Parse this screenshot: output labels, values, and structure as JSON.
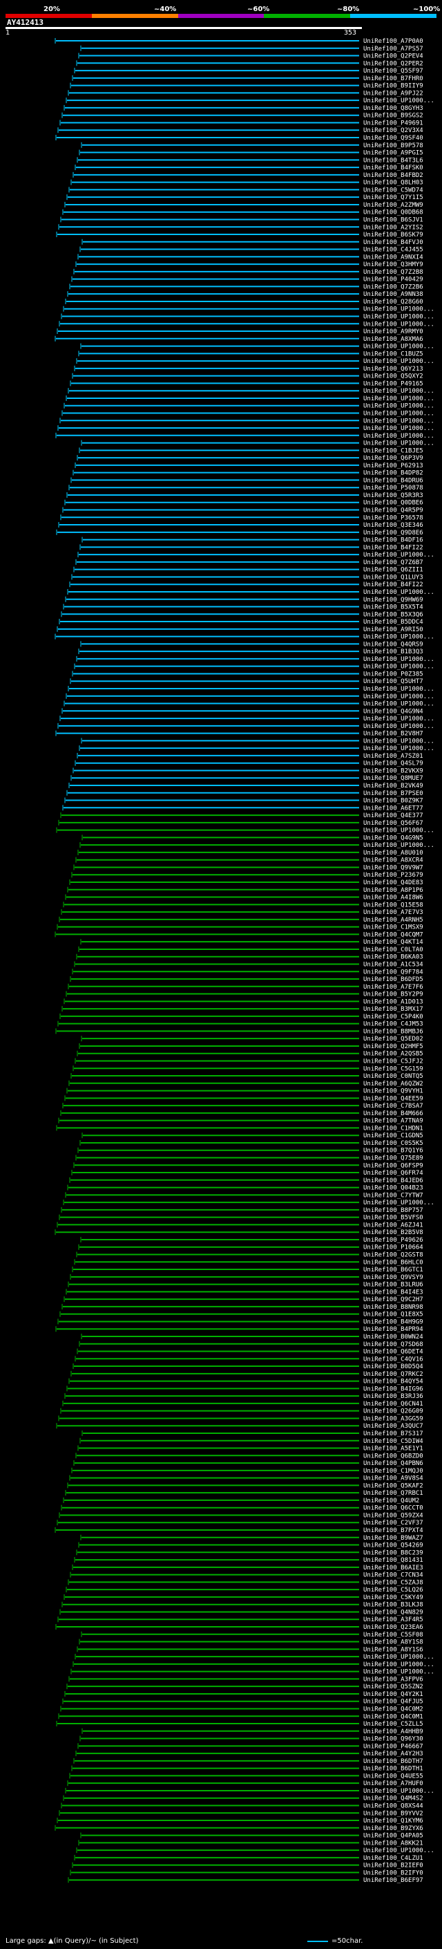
{
  "scale": {
    "labels": [
      "20%",
      "~40%",
      "~60%",
      "~80%",
      "~100%"
    ],
    "colors": [
      "#e00000",
      "#ff8000",
      "#a000c0",
      "#00b000",
      "#00bfff"
    ]
  },
  "query": {
    "id": "AY412413",
    "start": "1",
    "end": "353"
  },
  "legend": {
    "text": "Large gaps: ▲(in Query)/~ (in Subject)",
    "scale_text": "=50char."
  },
  "hits": [
    "UniRef100_A7P0A0",
    "UniRef100_A7PS57",
    "UniRef100_Q2PEV4",
    "UniRef100_Q2PER2",
    "UniRef100_Q5SF97",
    "UniRef100_B7FHR0",
    "UniRef100_B9IIY9",
    "UniRef100_A9PJ22",
    "UniRef100_UP1000...",
    "UniRef100_Q8GYH3",
    "UniRef100_B9SGS2",
    "UniRef100_P49691",
    "UniRef100_Q2V3X4",
    "UniRef100_Q9SF40",
    "UniRef100_B9P578",
    "UniRef100_A9PGI5",
    "UniRef100_B4T3L6",
    "UniRef100_B4FSK0",
    "UniRef100_B4FBD2",
    "UniRef100_Q8LH03",
    "UniRef100_C5WD74",
    "UniRef100_Q7Y1I5",
    "UniRef100_A2ZMW9",
    "UniRef100_Q0DB68",
    "UniRef100_B6SJV1",
    "UniRef100_A2YIS2",
    "UniRef100_B6SK79",
    "UniRef100_B4FVJ0",
    "UniRef100_C4J455",
    "UniRef100_A9NXI4",
    "UniRef100_Q3HMY9",
    "UniRef100_Q7Z2B8",
    "UniRef100_P40429",
    "UniRef100_Q7Z2B6",
    "UniRef100_A9NN38",
    "UniRef100_Q28G60",
    "UniRef100_UP1000...",
    "UniRef100_UP1000...",
    "UniRef100_UP1000...",
    "UniRef100_A9RMY0",
    "UniRef100_A8XMA6",
    "UniRef100_UP1000...",
    "UniRef100_C1BUZ5",
    "UniRef100_UP1000...",
    "UniRef100_Q6Y213",
    "UniRef100_Q5QXY2",
    "UniRef100_P49165",
    "UniRef100_UP1000...",
    "UniRef100_UP1000...",
    "UniRef100_UP1000...",
    "UniRef100_UP1000...",
    "UniRef100_UP1000...",
    "UniRef100_UP1000...",
    "UniRef100_UP1000...",
    "UniRef100_UP1000...",
    "UniRef100_C1BJE5",
    "UniRef100_Q6P3V9",
    "UniRef100_P62913",
    "UniRef100_B4DP82",
    "UniRef100_B4DRU6",
    "UniRef100_P50878",
    "UniRef100_Q5R3R3",
    "UniRef100_Q0DBE6",
    "UniRef100_Q4R5P9",
    "UniRef100_P36578",
    "UniRef100_Q3E346",
    "UniRef100_Q9D8E6",
    "UniRef100_B4DF16",
    "UniRef100_B4FI22",
    "UniRef100_UP1000...",
    "UniRef100_Q7Z6B7",
    "UniRef100_Q6ZII1",
    "UniRef100_Q1LUY3",
    "UniRef100_B4FI22",
    "UniRef100_UP1000...",
    "UniRef100_Q9HW69",
    "UniRef100_B5X5T4",
    "UniRef100_B5X3Q6",
    "UniRef100_B5DDC4",
    "UniRef100_A9RI50",
    "UniRef100_UP1000...",
    "UniRef100_Q4QRS9",
    "UniRef100_B1B3Q3",
    "UniRef100_UP1000...",
    "UniRef100_UP1000...",
    "UniRef100_P0Z385",
    "UniRef100_Q5UHT7",
    "UniRef100_UP1000...",
    "UniRef100_UP1000...",
    "UniRef100_UP1000...",
    "UniRef100_Q4G9N4",
    "UniRef100_UP1000...",
    "UniRef100_UP1000...",
    "UniRef100_B2V8H7",
    "UniRef100_UP1000...",
    "UniRef100_UP1000...",
    "UniRef100_A7SZ01",
    "UniRef100_Q4SL79",
    "UniRef100_B2VKX9",
    "UniRef100_Q8MUE7",
    "UniRef100_B2VK49",
    "UniRef100_B7PSE0",
    "UniRef100_B0Z9K7",
    "UniRef100_A6ET77",
    "UniRef100_Q4E377",
    "UniRef100_Q56F67",
    "UniRef100_UP1000...",
    "UniRef100_Q4G9N5",
    "UniRef100_UP1000...",
    "UniRef100_A8U010",
    "UniRef100_A8XCR4",
    "UniRef100_Q9V9W7",
    "UniRef100_P23679",
    "UniRef100_Q4DE83",
    "UniRef100_A8P1P6",
    "UniRef100_A4I8W6",
    "UniRef100_Q15E58",
    "UniRef100_A7E7V3",
    "UniRef100_A4RNH5",
    "UniRef100_C1MSX9",
    "UniRef100_Q4CQM7",
    "UniRef100_Q4KT14",
    "UniRef100_C0LTA0",
    "UniRef100_B6KA03",
    "UniRef100_A1C534",
    "UniRef100_Q9F784",
    "UniRef100_B6DFD5",
    "UniRef100_A7E7F6",
    "UniRef100_B5Y2P9",
    "UniRef100_A1D013",
    "UniRef100_B3MX17",
    "UniRef100_C5P4K0",
    "UniRef100_C4JM53",
    "UniRef100_B8MBJ6",
    "UniRef100_Q5ED02",
    "UniRef100_Q2HMF5",
    "UniRef100_A2QSB5",
    "UniRef100_C5JFJ2",
    "UniRef100_C5G159",
    "UniRef100_C0NTQ5",
    "UniRef100_A6QZW2",
    "UniRef100_Q9VYH1",
    "UniRef100_Q4EE59",
    "UniRef100_C7BSA7",
    "UniRef100_B4M666",
    "UniRef100_A7TNA9",
    "UniRef100_C1HDN1",
    "UniRef100_C1GDN5",
    "UniRef100_C0S5K5",
    "UniRef100_B7Q1Y6",
    "UniRef100_Q75E89",
    "UniRef100_Q6FSP9",
    "UniRef100_Q6FR74",
    "UniRef100_B4JED6",
    "UniRef100_Q04B23",
    "UniRef100_C7YTW7",
    "UniRef100_UP1000...",
    "UniRef100_B8P757",
    "UniRef100_B5VFS0",
    "UniRef100_A6ZJ41",
    "UniRef100_B2B5V8",
    "UniRef100_P49626",
    "UniRef100_P10664",
    "UniRef100_Q2GST8",
    "UniRef100_B6HLC0",
    "UniRef100_B6GTC1",
    "UniRef100_Q9VSY9",
    "UniRef100_B3LRU6",
    "UniRef100_B4I4E3",
    "UniRef100_Q9C2H7",
    "UniRef100_B8NR98",
    "UniRef100_Q1E8X5",
    "UniRef100_B4H9G9",
    "UniRef100_B4PR94",
    "UniRef100_B0WN24",
    "UniRef100_Q7SD68",
    "UniRef100_Q6DET4",
    "UniRef100_C4QV16",
    "UniRef100_B0D5Q4",
    "UniRef100_Q7RKC2",
    "UniRef100_B4QY54",
    "UniRef100_B4IG96",
    "UniRef100_B3RJ36",
    "UniRef100_Q6CN41",
    "UniRef100_Q26G09",
    "UniRef100_A3GG59",
    "UniRef100_A3QUC7",
    "UniRef100_B7S317",
    "UniRef100_C5DIW4",
    "UniRef100_A5E1Y1",
    "UniRef100_Q6BZD0",
    "UniRef100_Q4PBN6",
    "UniRef100_C1MQJ0",
    "UniRef100_A9V8S4",
    "UniRef100_Q5KAF2",
    "UniRef100_Q7RBC1",
    "UniRef100_Q4UM2",
    "UniRef100_Q6CCT0",
    "UniRef100_Q59ZX4",
    "UniRef100_C2VF37",
    "UniRef100_B7PXT4",
    "UniRef100_B9WAZ7",
    "UniRef100_Q54269",
    "UniRef100_B8C239",
    "UniRef100_Q81431",
    "UniRef100_B6AIE3",
    "UniRef100_C7CN34",
    "UniRef100_C5ZAJ8",
    "UniRef100_C5LQ26",
    "UniRef100_C5KY49",
    "UniRef100_B3LKJ8",
    "UniRef100_Q4N829",
    "UniRef100_A3F4R5",
    "UniRef100_Q23EA6",
    "UniRef100_C5SF08",
    "UniRef100_A8Y1S8",
    "UniRef100_A8Y1S6",
    "UniRef100_UP1000...",
    "UniRef100_UP1000...",
    "UniRef100_UP1000...",
    "UniRef100_A3FPV6",
    "UniRef100_Q5SZN2",
    "UniRef100_Q4Y2K1",
    "UniRef100_Q4FJU5",
    "UniRef100_Q4C0M2",
    "UniRef100_Q4C0M1",
    "UniRef100_C5ZLL5",
    "UniRef100_A4HHB9",
    "UniRef100_Q96Y30",
    "UniRef100_P46667",
    "UniRef100_A4Y2H3",
    "UniRef100_B6DTH7",
    "UniRef100_B6DTH1",
    "UniRef100_Q4UE55",
    "UniRef100_A7HUF0",
    "UniRef100_UP1000...",
    "UniRef100_Q4M4S2",
    "UniRef100_Q8XS44",
    "UniRef100_B9YVV2",
    "UniRef100_Q1KYM6",
    "UniRef100_B9ZYX6",
    "UniRef100_Q4PA05",
    "UniRef100_A8KK21",
    "UniRef100_UP1000...",
    "UniRef100_C4LZU1",
    "UniRef100_B2IEF0",
    "UniRef100_B2IFY0",
    "UniRef100_B6EF97"
  ]
}
